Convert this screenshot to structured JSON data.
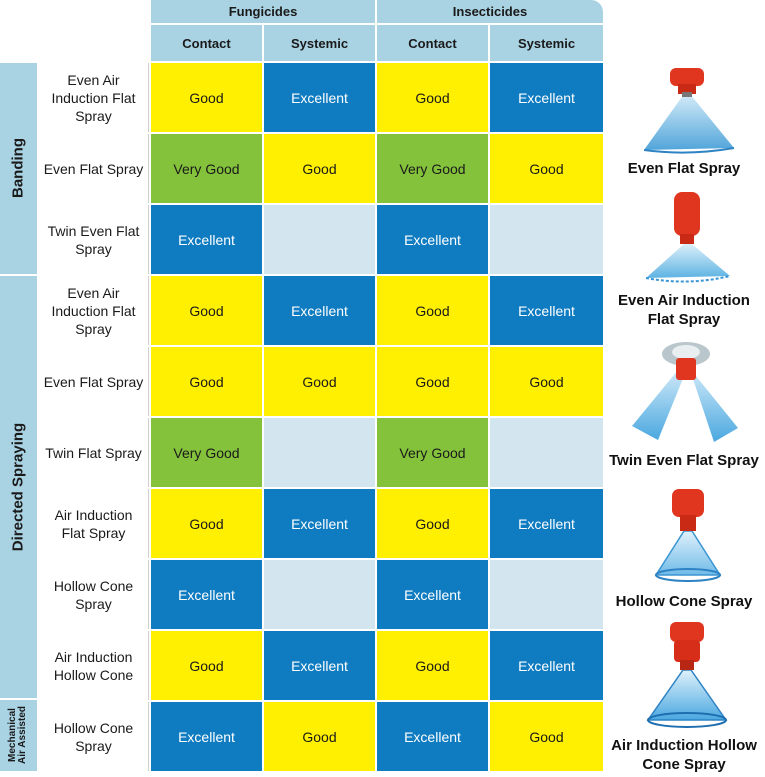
{
  "header": {
    "fungicides": "Fungicides",
    "insecticides": "Insecticides",
    "contact": "Contact",
    "systemic": "Systemic"
  },
  "groups": {
    "banding": "Banding",
    "directed": "Directed Spraying",
    "mechanical_line1": "Mechanical",
    "mechanical_line2": "Air Assisted"
  },
  "rows": [
    {
      "label": "Even Air Induction Flat Spray",
      "cells": [
        "Good",
        "Excellent",
        "Good",
        "Excellent"
      ]
    },
    {
      "label": "Even Flat Spray",
      "cells": [
        "Very Good",
        "Good",
        "Very Good",
        "Good"
      ]
    },
    {
      "label": "Twin Even Flat Spray",
      "cells": [
        "Excellent",
        "",
        "Excellent",
        ""
      ]
    },
    {
      "label": "Even Air Induction Flat Spray",
      "cells": [
        "Good",
        "Excellent",
        "Good",
        "Excellent"
      ]
    },
    {
      "label": "Even Flat Spray",
      "cells": [
        "Good",
        "Good",
        "Good",
        "Good"
      ]
    },
    {
      "label": "Twin Flat Spray",
      "cells": [
        "Very Good",
        "",
        "Very Good",
        ""
      ]
    },
    {
      "label": "Air Induction Flat Spray",
      "cells": [
        "Good",
        "Excellent",
        "Good",
        "Excellent"
      ]
    },
    {
      "label": "Hollow Cone Spray",
      "cells": [
        "Excellent",
        "",
        "Excellent",
        ""
      ]
    },
    {
      "label": "Air Induction Hollow Cone",
      "cells": [
        "Good",
        "Excellent",
        "Good",
        "Excellent"
      ]
    },
    {
      "label": "Hollow Cone Spray",
      "cells": [
        "Excellent",
        "Good",
        "Excellent",
        "Good"
      ]
    }
  ],
  "nozzles": [
    {
      "label": "Even Flat Spray",
      "icon": "even-flat-spray-nozzle-icon"
    },
    {
      "label": "Even Air Induction Flat Spray",
      "icon": "even-air-induction-nozzle-icon"
    },
    {
      "label": "Twin Even Flat Spray",
      "icon": "twin-even-flat-spray-nozzle-icon"
    },
    {
      "label": "Hollow Cone Spray",
      "icon": "hollow-cone-nozzle-icon"
    },
    {
      "label": "Air Induction Hollow Cone Spray",
      "icon": "air-induction-hollow-cone-nozzle-icon"
    }
  ],
  "colors": {
    "header": "#a9d2e3",
    "excellent": "#0f7bc0",
    "good": "#ffef00",
    "very_good": "#84c23c",
    "empty": "#d3e6ef",
    "nozzle_red": "#e0361f",
    "spray_blue": "#4aa8e0"
  }
}
